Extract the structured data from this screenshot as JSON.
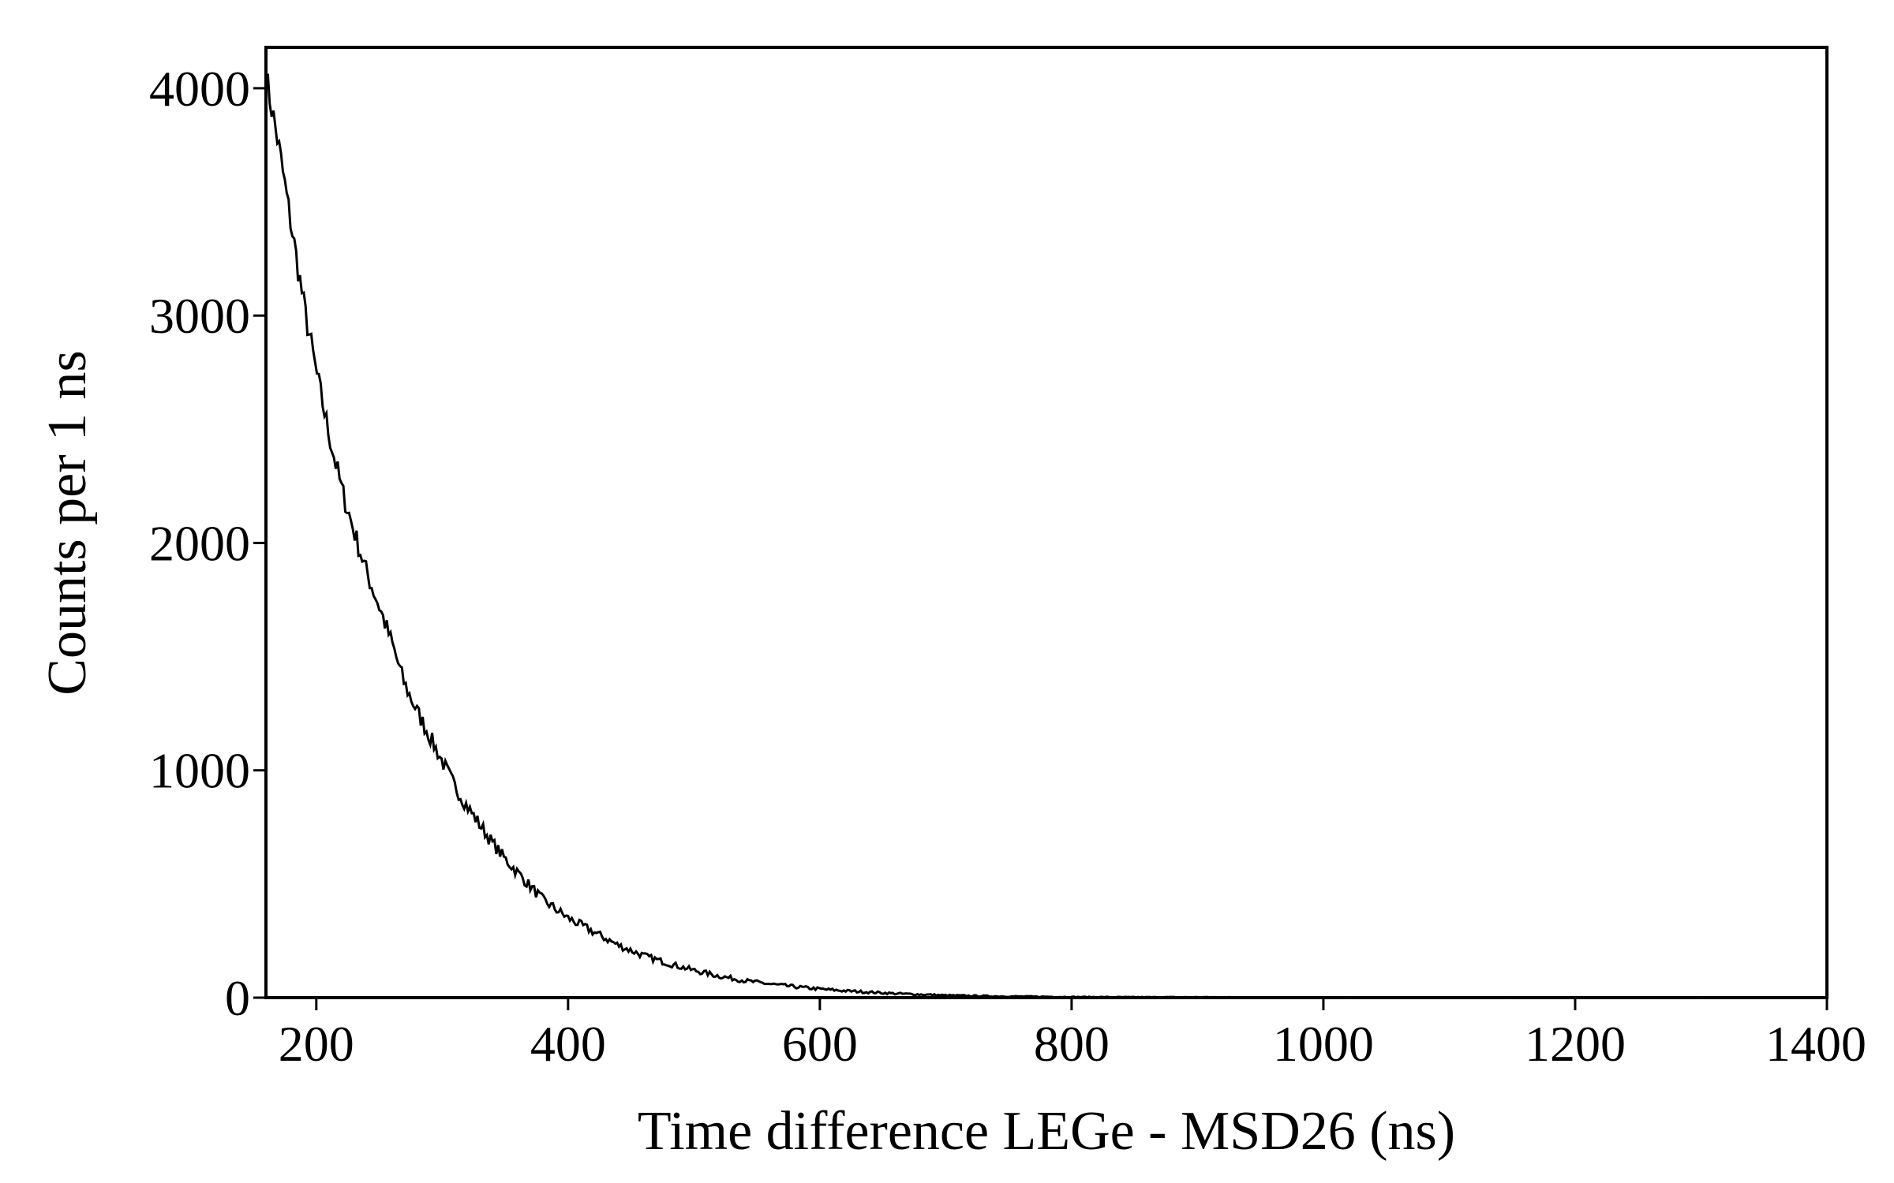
{
  "chart_data": {
    "type": "line",
    "title": "",
    "xlabel": "Time difference LEGe - MSD26 (ns)",
    "ylabel": "Counts per 1 ns",
    "xlim": [
      160,
      1400
    ],
    "ylim": [
      0,
      4180
    ],
    "x_ticks": [
      200,
      400,
      600,
      800,
      1000,
      1200,
      1400
    ],
    "y_ticks": [
      0,
      1000,
      2000,
      3000,
      4000
    ],
    "x_tick_labels": [
      "200",
      "400",
      "600",
      "800",
      "1000",
      "1200",
      "1400"
    ],
    "y_tick_labels": [
      "0",
      "1000",
      "2000",
      "3000",
      "4000"
    ],
    "grid": false,
    "legend": "none",
    "line_color": "#000000",
    "series": [
      {
        "x": [
          160,
          170,
          180,
          190,
          200,
          210,
          220,
          230,
          240,
          250,
          260,
          270,
          280,
          290,
          300,
          310,
          320,
          330,
          340,
          350,
          360,
          370,
          380,
          390,
          400,
          420,
          440,
          460,
          480,
          500,
          520,
          540,
          560,
          580,
          600,
          620,
          640,
          660,
          680,
          700,
          720,
          740,
          760,
          780,
          800,
          850,
          900,
          950,
          1000,
          1050,
          1100,
          1150,
          1200,
          1250,
          1300,
          1350,
          1400
        ],
        "values": [
          4050,
          3750,
          3400,
          3050,
          2750,
          2480,
          2240,
          2050,
          1870,
          1720,
          1560,
          1380,
          1260,
          1150,
          1040,
          930,
          840,
          760,
          680,
          610,
          550,
          490,
          430,
          390,
          350,
          290,
          230,
          185,
          150,
          120,
          95,
          75,
          60,
          48,
          38,
          30,
          24,
          18,
          14,
          10,
          8,
          6,
          5,
          4,
          3,
          2,
          2,
          1,
          1,
          1,
          1,
          1,
          1,
          1,
          1,
          1,
          1
        ]
      }
    ]
  }
}
